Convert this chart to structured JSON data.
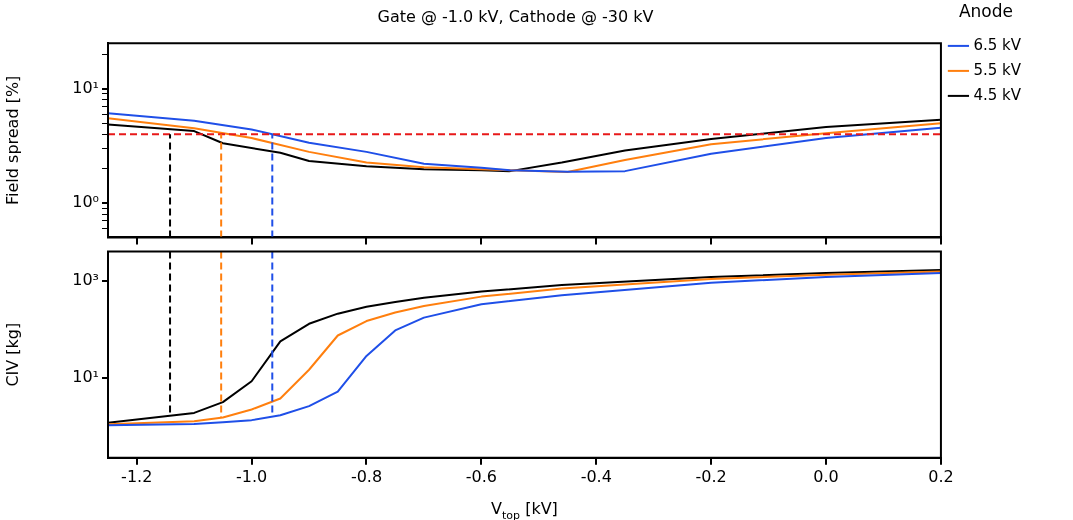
{
  "chart_data": [
    {
      "type": "line",
      "title": "Gate @ -1.0 kV, Cathode @ -30 kV",
      "ylabel": "Field spread [%]",
      "legend_title": "Anode",
      "legend": "right",
      "log": true,
      "marker": "none",
      "line_style": "solid",
      "grid": false,
      "tick_labels": "y",
      "xlim": [
        -1.25,
        0.2
      ],
      "xticks": [
        {
          "value": -1.2,
          "label": null
        },
        {
          "value": -1,
          "label": null
        },
        {
          "value": -0.8,
          "label": null
        },
        {
          "value": -0.6,
          "label": null
        },
        {
          "value": -0.4,
          "label": null
        },
        {
          "value": -0.2,
          "label": null
        },
        {
          "value": 0,
          "label": null
        },
        {
          "value": 0.2,
          "label": null
        }
      ],
      "ylim": [
        0.5,
        25
      ],
      "yticks": [
        {
          "value": 0.6,
          "label": null
        },
        {
          "value": 0.7,
          "label": null
        },
        {
          "value": 0.8,
          "label": null
        },
        {
          "value": 0.9,
          "label": null
        },
        {
          "value": 1,
          "label": "10⁰"
        },
        {
          "value": 2,
          "label": null
        },
        {
          "value": 3,
          "label": null
        },
        {
          "value": 4,
          "label": null
        },
        {
          "value": 5,
          "label": null
        },
        {
          "value": 6,
          "label": null
        },
        {
          "value": 7,
          "label": null
        },
        {
          "value": 8,
          "label": null
        },
        {
          "value": 9,
          "label": null
        },
        {
          "value": 10,
          "label": "10¹"
        },
        {
          "value": 20,
          "label": null
        }
      ],
      "series": [
        {
          "name": "6.5 kV",
          "color": "#1f4fe8",
          "x": [
            -1.25,
            -1.1,
            -1.0,
            -0.9,
            -0.8,
            -0.7,
            -0.6,
            -0.55,
            -0.45,
            -0.35,
            -0.2,
            0.0,
            0.2
          ],
          "values": [
            6.1,
            5.25,
            4.4,
            3.37,
            2.8,
            2.2,
            2.03,
            1.93,
            1.88,
            1.9,
            2.7,
            3.7,
            4.56
          ]
        },
        {
          "name": "5.5 kV",
          "color": "#ff7f0e",
          "x": [
            -1.25,
            -1.1,
            -1.0,
            -0.9,
            -0.8,
            -0.7,
            -0.6,
            -0.55,
            -0.45,
            -0.35,
            -0.2,
            0.0,
            0.2
          ],
          "values": [
            5.5,
            4.5,
            3.7,
            2.8,
            2.26,
            2.05,
            1.97,
            1.93,
            1.87,
            2.38,
            3.27,
            4.07,
            4.99
          ]
        },
        {
          "name": "4.5 kV",
          "color": "#000000",
          "x": [
            -1.25,
            -1.1,
            -1.05,
            -0.95,
            -0.9,
            -0.8,
            -0.7,
            -0.6,
            -0.55,
            -0.46,
            -0.35,
            -0.2,
            0.0,
            0.2
          ],
          "values": [
            4.86,
            4.26,
            3.33,
            2.75,
            2.33,
            2.1,
            1.97,
            1.93,
            1.9,
            2.26,
            2.88,
            3.63,
            4.62,
            5.35
          ]
        }
      ],
      "ref_lines": [
        {
          "axis": "y",
          "value": 4,
          "color": "#e8191a",
          "line_style": "dashed"
        },
        {
          "axis": "x",
          "value": -1.142,
          "color": "#000000",
          "line_style": "dashed"
        },
        {
          "axis": "x",
          "value": -1.053,
          "color": "#ff7f0e",
          "line_style": "dashed"
        },
        {
          "axis": "x",
          "value": -0.964,
          "color": "#1f4fe8",
          "line_style": "dashed"
        }
      ]
    },
    {
      "type": "line",
      "xlabel": "V$_{top}$ [kV]",
      "ylabel": "CIV [kg]",
      "log": true,
      "marker": "none",
      "line_style": "solid",
      "grid": false,
      "xlim": [
        -1.25,
        0.2
      ],
      "xticks": [
        -1.2,
        {
          "value": -1,
          "label": "-1.0"
        },
        -0.8,
        -0.6,
        -0.4,
        -0.2,
        {
          "value": 0,
          "label": "0.0"
        },
        0.2
      ],
      "ylim": [
        0.22,
        4000
      ],
      "yticks": [
        {
          "value": 10,
          "label": "10¹"
        },
        {
          "value": 1000,
          "label": "10³"
        }
      ],
      "series": [
        {
          "color": "#1f4fe8",
          "x": [
            -1.25,
            -1.1,
            -1.05,
            -1.0,
            -0.95,
            -0.9,
            -0.85,
            -0.8,
            -0.75,
            -0.7,
            -0.6,
            -0.46,
            -0.2,
            0.0,
            0.2
          ],
          "values": [
            1.03,
            1.1,
            1.2,
            1.32,
            1.66,
            2.57,
            5.1,
            28,
            94,
            173,
            326,
            500,
            910,
            1200,
            1440
          ]
        },
        {
          "color": "#ff7f0e",
          "x": [
            -1.25,
            -1.1,
            -1.05,
            -1.0,
            -0.95,
            -0.9,
            -0.85,
            -0.8,
            -0.75,
            -0.7,
            -0.6,
            -0.46,
            -0.2,
            0.0,
            0.2
          ],
          "values": [
            1.08,
            1.25,
            1.49,
            2.19,
            3.7,
            14.5,
            74,
            147,
            220,
            300,
            470,
            690,
            1090,
            1330,
            1560
          ]
        },
        {
          "color": "#000000",
          "x": [
            -1.25,
            -1.1,
            -1.05,
            -1.0,
            -0.95,
            -0.9,
            -0.85,
            -0.8,
            -0.75,
            -0.7,
            -0.6,
            -0.46,
            -0.2,
            0.0,
            0.2
          ],
          "values": [
            1.17,
            1.86,
            3.1,
            8.4,
            56,
            129,
            209,
            290,
            365,
            447,
            597,
            815,
            1200,
            1440,
            1660
          ]
        }
      ],
      "ref_lines": [
        {
          "axis": "x",
          "value": -1.142,
          "color": "#000000",
          "line_style": "dashed"
        },
        {
          "axis": "x",
          "value": -1.053,
          "color": "#ff7f0e",
          "line_style": "dashed"
        },
        {
          "axis": "x",
          "value": -0.964,
          "color": "#1f4fe8",
          "line_style": "dashed"
        }
      ]
    }
  ]
}
